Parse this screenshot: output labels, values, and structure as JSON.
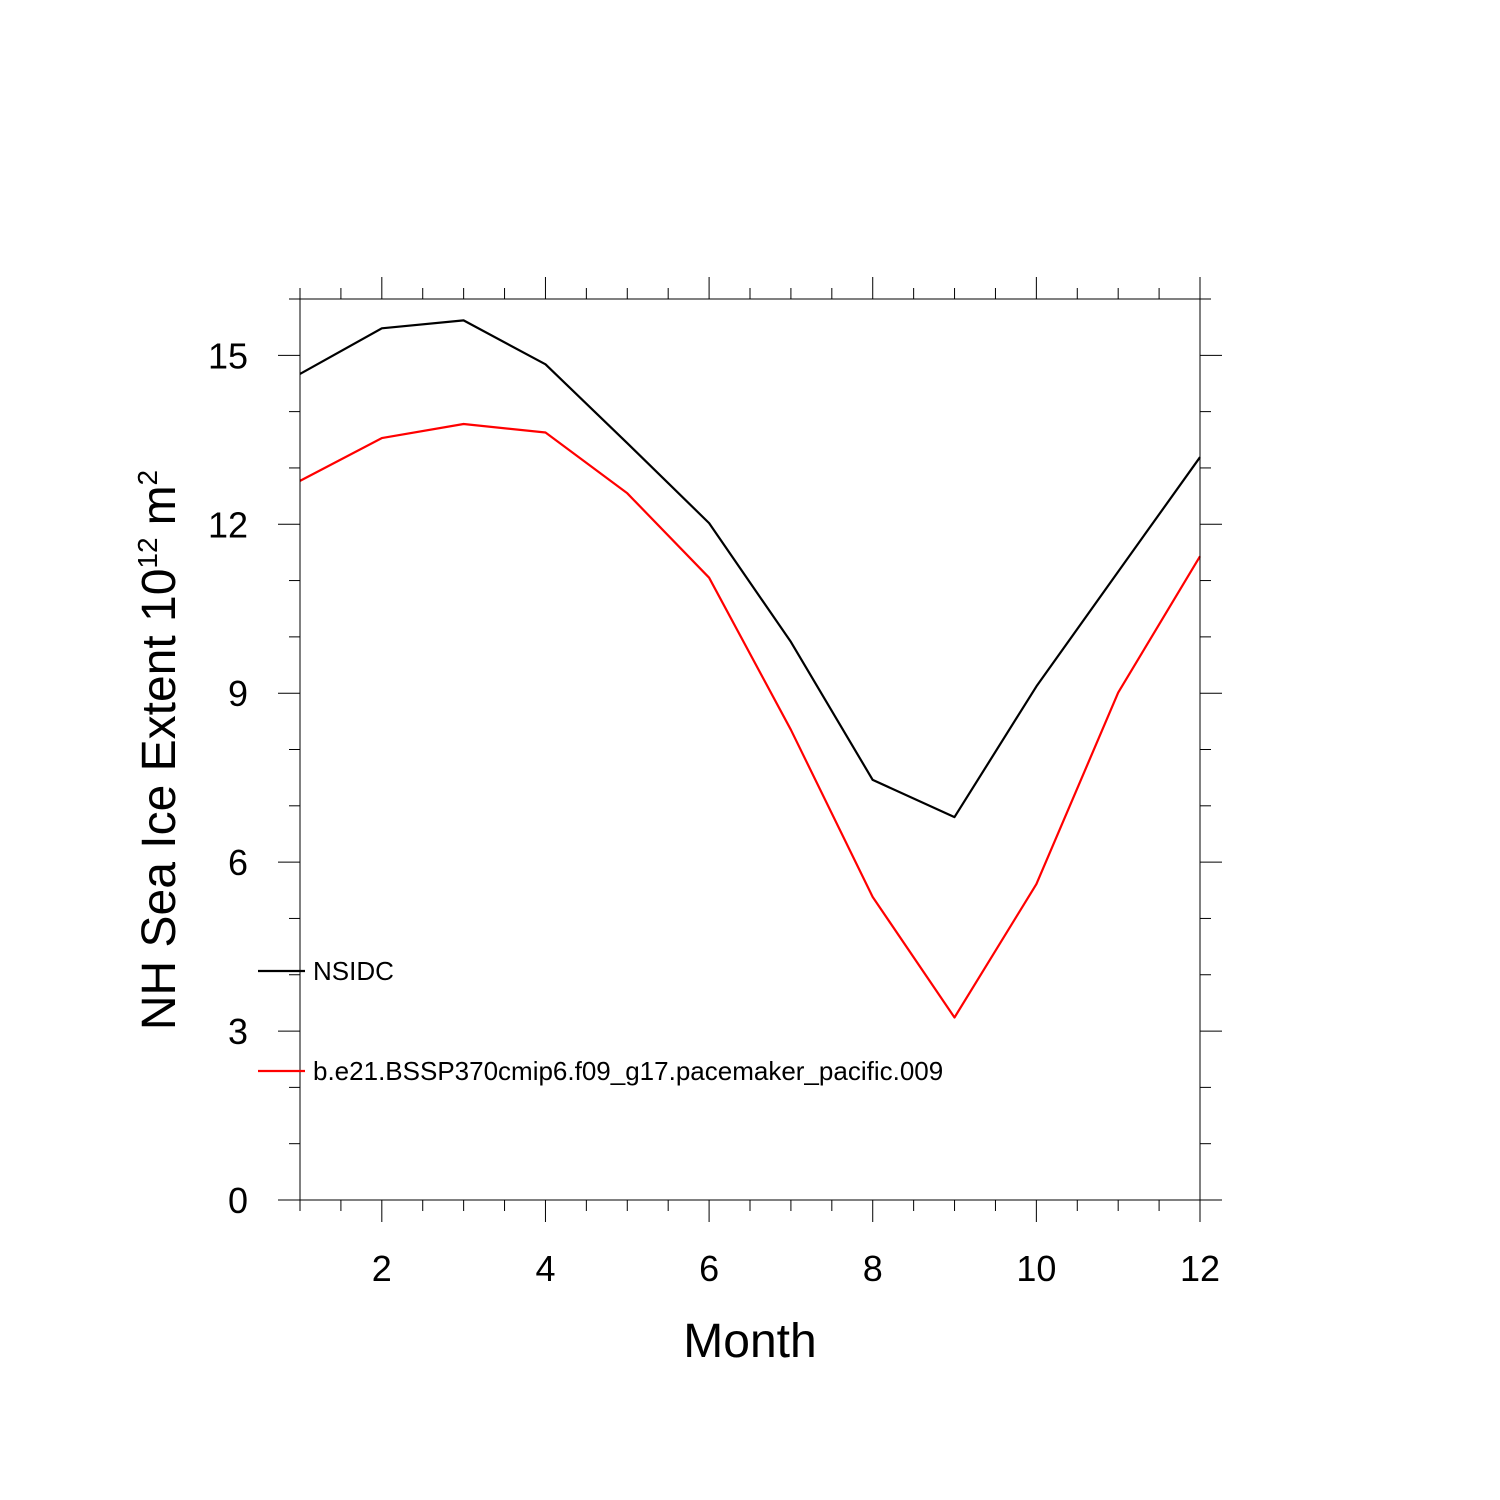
{
  "chart_data": {
    "type": "line",
    "title": "",
    "xlabel": "Month",
    "ylabel": "NH Sea Ice Extent 10",
    "ylabel_exponent": "12",
    "ylabel_unit": "m",
    "ylabel_unit_exponent": "2",
    "xlim": [
      1,
      12
    ],
    "ylim": [
      0,
      16
    ],
    "xticks": [
      2,
      4,
      6,
      8,
      10,
      12
    ],
    "xtick_labels": [
      "2",
      "4",
      "6",
      "8",
      "10",
      "12"
    ],
    "yticks": [
      0,
      3,
      6,
      9,
      12,
      15
    ],
    "ytick_labels": [
      "0",
      "3",
      "6",
      "9",
      "12",
      "15"
    ],
    "grid": false,
    "legend_position": "lower-left",
    "x": [
      1,
      2,
      3,
      4,
      5,
      6,
      7,
      8,
      9,
      10,
      11,
      12
    ],
    "series": [
      {
        "name": "NSIDC",
        "color": "#000000",
        "values": [
          14.67,
          15.48,
          15.62,
          14.84,
          13.44,
          12.02,
          9.91,
          7.46,
          6.8,
          9.12,
          11.16,
          13.19
        ]
      },
      {
        "name": "b.e21.BSSP370cmip6.f09_g17.pacemaker_pacific.009",
        "color": "#ff0000",
        "values": [
          12.77,
          13.53,
          13.78,
          13.63,
          12.55,
          11.05,
          8.35,
          5.38,
          3.24,
          5.61,
          9.01,
          11.43
        ]
      }
    ]
  }
}
